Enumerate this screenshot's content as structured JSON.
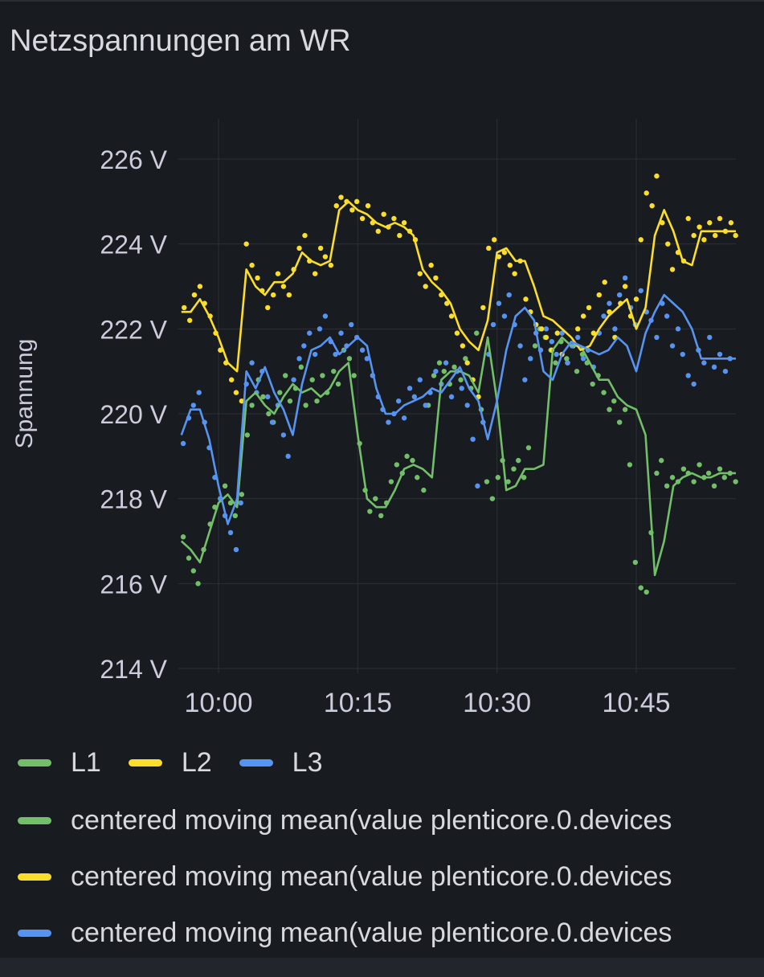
{
  "panel": {
    "title": "Netzspannungen am WR"
  },
  "colors": {
    "L1": "#73bf69",
    "L2": "#fade2a",
    "L3": "#5794f2",
    "grid": "#2c3035",
    "text": "#ccccdc",
    "background": "#181b1f"
  },
  "legend": {
    "row1": [
      {
        "label": "L1",
        "color": "#73bf69"
      },
      {
        "label": "L2",
        "color": "#fade2a"
      },
      {
        "label": "L3",
        "color": "#5794f2"
      }
    ],
    "rows": [
      {
        "label": "centered moving mean(value plenticore.0.devices",
        "color": "#73bf69"
      },
      {
        "label": "centered moving mean(value plenticore.0.devices",
        "color": "#fade2a"
      },
      {
        "label": "centered moving mean(value plenticore.0.devices",
        "color": "#5794f2"
      }
    ]
  },
  "chart_data": {
    "type": "scatter",
    "title": "Netzspannungen am WR",
    "ylabel": "Spannung",
    "xlabel": "",
    "ylim": [
      214,
      227
    ],
    "xlim": [
      56,
      116
    ],
    "y_ticks": [
      214,
      216,
      218,
      220,
      222,
      224,
      226
    ],
    "y_tick_labels": [
      "214 V",
      "216 V",
      "218 V",
      "220 V",
      "222 V",
      "224 V",
      "226 V"
    ],
    "x_ticks": [
      60,
      75,
      90,
      105
    ],
    "x_tick_labels": [
      "10:00",
      "10:15",
      "10:30",
      "10:45"
    ],
    "x_unit": "minutes after 09:00",
    "series": [
      {
        "name": "centered moving mean(value plenticore.0.devices",
        "color": "#73bf69",
        "x": [
          56,
          57,
          58,
          59,
          60,
          61,
          62,
          63,
          64,
          65,
          66,
          67,
          68,
          69,
          70,
          71,
          72,
          73,
          74,
          75,
          76,
          77,
          78,
          79,
          80,
          81,
          82,
          83,
          84,
          85,
          86,
          87,
          88,
          89,
          90,
          91,
          92,
          93,
          94,
          95,
          96,
          97,
          98,
          99,
          100,
          101,
          102,
          103,
          104,
          105,
          106,
          107,
          108,
          109,
          110,
          111,
          112,
          113,
          114,
          115,
          116
        ],
        "values": [
          217.0,
          216.8,
          216.5,
          217.2,
          217.9,
          218.1,
          217.8,
          220.3,
          220.5,
          220.2,
          220.0,
          220.4,
          220.7,
          220.5,
          220.6,
          220.4,
          220.6,
          221.0,
          221.2,
          219.5,
          218.0,
          217.8,
          217.8,
          218.2,
          218.7,
          218.8,
          218.7,
          218.5,
          220.8,
          221.0,
          221.0,
          220.9,
          220.5,
          221.8,
          220.3,
          218.2,
          218.3,
          218.7,
          218.7,
          218.8,
          221.5,
          221.8,
          221.6,
          221.6,
          221.2,
          220.8,
          220.8,
          220.4,
          220.2,
          220.1,
          219.5,
          216.2,
          217.0,
          218.3,
          218.5,
          218.6,
          218.5,
          218.5,
          218.6,
          218.6,
          218.6
        ]
      },
      {
        "name": "centered moving mean(value plenticore.0.devices",
        "color": "#fade2a",
        "x": [
          56,
          57,
          58,
          59,
          60,
          61,
          62,
          63,
          64,
          65,
          66,
          67,
          68,
          69,
          70,
          71,
          72,
          73,
          74,
          75,
          76,
          77,
          78,
          79,
          80,
          81,
          82,
          83,
          84,
          85,
          86,
          87,
          88,
          89,
          90,
          91,
          92,
          93,
          94,
          95,
          96,
          97,
          98,
          99,
          100,
          101,
          102,
          103,
          104,
          105,
          106,
          107,
          108,
          109,
          110,
          111,
          112,
          113,
          114,
          115,
          116
        ],
        "values": [
          222.4,
          222.4,
          222.7,
          222.3,
          221.8,
          221.2,
          221.0,
          223.4,
          223.0,
          222.8,
          223.1,
          223.1,
          223.3,
          223.8,
          223.6,
          223.5,
          223.6,
          224.8,
          225.0,
          224.8,
          224.7,
          224.5,
          224.4,
          224.5,
          224.4,
          224.2,
          223.4,
          223.1,
          222.9,
          222.6,
          222.0,
          221.7,
          221.5,
          222.2,
          223.8,
          223.9,
          223.6,
          223.6,
          223.0,
          222.3,
          222.2,
          222.0,
          221.8,
          221.5,
          221.6,
          222.0,
          222.3,
          222.5,
          222.7,
          222.0,
          222.5,
          224.2,
          224.8,
          224.3,
          223.6,
          223.5,
          224.3,
          224.3,
          224.3,
          224.3,
          224.3
        ]
      },
      {
        "name": "centered moving mean(value plenticore.0.devices",
        "color": "#5794f2",
        "x": [
          56,
          57,
          58,
          59,
          60,
          61,
          62,
          63,
          64,
          65,
          66,
          67,
          68,
          69,
          70,
          71,
          72,
          73,
          74,
          75,
          76,
          77,
          78,
          79,
          80,
          81,
          82,
          83,
          84,
          85,
          86,
          87,
          88,
          89,
          90,
          91,
          92,
          93,
          94,
          95,
          96,
          97,
          98,
          99,
          100,
          101,
          102,
          103,
          104,
          105,
          106,
          107,
          108,
          109,
          110,
          111,
          112,
          113,
          114,
          115,
          116
        ],
        "values": [
          219.5,
          220.1,
          220.1,
          219.4,
          218.3,
          217.4,
          218.0,
          221.0,
          220.6,
          221.1,
          220.5,
          220.1,
          219.5,
          220.7,
          221.5,
          221.6,
          221.8,
          221.4,
          221.6,
          221.8,
          221.6,
          220.6,
          220.0,
          220.0,
          220.2,
          220.3,
          220.4,
          220.6,
          220.5,
          220.8,
          221.1,
          220.6,
          220.3,
          219.4,
          220.3,
          221.5,
          222.3,
          222.5,
          222.2,
          221.0,
          220.8,
          221.4,
          221.7,
          221.6,
          221.5,
          221.4,
          221.5,
          221.8,
          221.6,
          221.0,
          221.9,
          222.4,
          222.8,
          222.6,
          222.4,
          222.0,
          221.3,
          221.3,
          221.3,
          221.3,
          221.3
        ]
      }
    ],
    "scatter_series": [
      {
        "name": "L1",
        "color": "#73bf69",
        "x": [
          56.2,
          56.8,
          57.3,
          57.8,
          58.4,
          59.1,
          59.6,
          60.2,
          60.7,
          61.3,
          61.8,
          62.5,
          63.1,
          63.6,
          64.3,
          64.8,
          65.4,
          65.9,
          66.6,
          67.2,
          67.7,
          68.3,
          68.9,
          69.4,
          70.1,
          70.6,
          71.2,
          71.7,
          72.4,
          72.9,
          73.5,
          74.1,
          74.6,
          75.2,
          75.8,
          76.3,
          76.9,
          77.5,
          78.1,
          78.6,
          79.2,
          79.8,
          80.3,
          80.9,
          81.4,
          82.1,
          82.6,
          83.2,
          83.8,
          84.3,
          84.9,
          85.4,
          86.1,
          86.6,
          87.2,
          87.8,
          88.3,
          88.9,
          89.5,
          90.1,
          90.6,
          91.2,
          91.8,
          92.3,
          92.9,
          93.4,
          94.1,
          94.6,
          95.2,
          95.8,
          96.3,
          96.9,
          97.5,
          98.1,
          98.6,
          99.2,
          99.7,
          100.3,
          100.9,
          101.5,
          102.1,
          102.6,
          103.2,
          103.8,
          104.3,
          104.9,
          105.5,
          106.1,
          106.6,
          107.2,
          107.7,
          108.3,
          108.9,
          109.5,
          110.1,
          110.6,
          111.2,
          111.8,
          112.3,
          112.8,
          113.4,
          114.0,
          114.5,
          115.1,
          115.7
        ],
        "values": [
          217.1,
          216.6,
          216.3,
          216.0,
          216.8,
          217.4,
          217.8,
          218.0,
          218.3,
          217.9,
          217.6,
          218.1,
          219.5,
          220.2,
          220.8,
          220.4,
          220.0,
          219.8,
          220.5,
          220.9,
          220.3,
          220.6,
          221.1,
          220.2,
          220.8,
          220.3,
          220.9,
          220.5,
          221.0,
          220.7,
          221.5,
          221.3,
          220.9,
          219.3,
          218.2,
          217.7,
          218.0,
          217.6,
          217.9,
          218.4,
          218.8,
          218.6,
          219.0,
          218.9,
          218.5,
          218.2,
          220.2,
          220.9,
          221.2,
          221.0,
          220.7,
          221.1,
          220.8,
          221.3,
          220.6,
          221.9,
          220.1,
          218.4,
          218.0,
          218.5,
          218.9,
          218.4,
          218.7,
          218.9,
          218.5,
          219.2,
          221.6,
          222.0,
          221.8,
          221.5,
          221.2,
          221.7,
          221.3,
          221.6,
          221.0,
          221.4,
          221.2,
          220.7,
          220.9,
          220.5,
          220.1,
          220.3,
          219.8,
          220.1,
          218.8,
          216.5,
          215.9,
          215.8,
          217.2,
          218.6,
          218.9,
          218.3,
          218.5,
          218.4,
          218.7,
          218.6,
          218.4,
          218.8,
          218.5,
          218.6,
          218.3,
          218.7,
          218.5,
          218.6,
          218.4
        ]
      },
      {
        "name": "L2",
        "color": "#fade2a",
        "x": [
          56.3,
          56.9,
          57.4,
          58.0,
          58.5,
          59.1,
          59.7,
          60.2,
          60.8,
          61.4,
          61.9,
          62.5,
          63.0,
          63.6,
          64.2,
          64.7,
          65.3,
          65.9,
          66.4,
          67.0,
          67.6,
          68.1,
          68.7,
          69.3,
          69.8,
          70.4,
          71.0,
          71.5,
          72.1,
          72.7,
          73.2,
          73.8,
          74.4,
          74.9,
          75.5,
          76.1,
          76.6,
          77.2,
          77.8,
          78.3,
          78.9,
          79.5,
          80.0,
          80.6,
          81.2,
          81.7,
          82.3,
          82.9,
          83.4,
          84.0,
          84.6,
          85.1,
          85.7,
          86.3,
          86.8,
          87.4,
          88.0,
          88.5,
          89.1,
          89.7,
          90.2,
          90.8,
          91.4,
          91.9,
          92.5,
          93.1,
          93.6,
          94.2,
          94.8,
          95.3,
          95.9,
          96.5,
          97.0,
          97.6,
          98.2,
          98.7,
          99.3,
          99.9,
          100.4,
          101.0,
          101.6,
          102.1,
          102.7,
          103.3,
          103.8,
          104.4,
          105.0,
          105.5,
          106.1,
          106.7,
          107.2,
          107.8,
          108.4,
          108.9,
          109.5,
          110.1,
          110.6,
          111.2,
          111.8,
          112.3,
          112.9,
          113.5,
          114.0,
          114.6,
          115.2,
          115.7
        ],
        "values": [
          222.5,
          222.2,
          222.8,
          223.0,
          222.6,
          222.3,
          221.9,
          221.5,
          221.2,
          220.8,
          220.5,
          220.3,
          224.0,
          223.5,
          223.2,
          222.9,
          222.5,
          222.8,
          223.3,
          223.0,
          222.8,
          223.4,
          223.9,
          224.2,
          223.6,
          223.3,
          223.9,
          223.7,
          223.5,
          224.9,
          225.1,
          225.0,
          224.8,
          225.0,
          224.6,
          224.9,
          224.5,
          224.3,
          224.7,
          224.4,
          224.6,
          224.2,
          224.5,
          224.3,
          224.1,
          223.3,
          223.0,
          223.5,
          223.2,
          222.8,
          222.6,
          222.3,
          221.9,
          221.6,
          221.2,
          220.8,
          220.4,
          222.5,
          223.9,
          224.1,
          223.7,
          223.8,
          223.5,
          223.3,
          223.6,
          222.7,
          222.4,
          222.1,
          222.0,
          221.8,
          221.5,
          221.9,
          221.4,
          221.2,
          221.6,
          222.0,
          222.3,
          222.5,
          221.9,
          222.8,
          223.1,
          222.4,
          221.8,
          222.6,
          223.0,
          222.3,
          222.7,
          224.1,
          225.2,
          224.9,
          225.6,
          224.5,
          224.0,
          223.4,
          223.8,
          223.6,
          224.6,
          224.2,
          224.4,
          224.1,
          224.5,
          224.2,
          224.6,
          224.3,
          224.5,
          224.2
        ]
      },
      {
        "name": "L3",
        "color": "#5794f2",
        "x": [
          56.2,
          56.8,
          57.3,
          57.9,
          58.5,
          59.0,
          59.6,
          60.2,
          60.7,
          61.3,
          61.9,
          62.4,
          63.0,
          63.6,
          64.1,
          64.7,
          65.3,
          65.8,
          66.4,
          67.0,
          67.5,
          68.1,
          68.7,
          69.2,
          69.8,
          70.4,
          70.9,
          71.5,
          72.1,
          72.6,
          73.2,
          73.8,
          74.3,
          74.9,
          75.5,
          76.0,
          76.6,
          77.2,
          77.7,
          78.3,
          78.9,
          79.4,
          80.0,
          80.6,
          81.1,
          81.7,
          82.3,
          82.8,
          83.4,
          84.0,
          84.5,
          85.1,
          85.7,
          86.2,
          86.8,
          87.4,
          87.9,
          88.5,
          89.1,
          89.6,
          90.2,
          90.8,
          91.3,
          91.9,
          92.5,
          93.0,
          93.6,
          94.2,
          94.7,
          95.3,
          95.9,
          96.4,
          97.0,
          97.6,
          98.1,
          98.7,
          99.3,
          99.8,
          100.4,
          101.0,
          101.5,
          102.1,
          102.7,
          103.2,
          103.8,
          104.4,
          104.9,
          105.5,
          106.1,
          106.6,
          107.2,
          107.8,
          108.3,
          108.9,
          109.5,
          110.0,
          110.6,
          111.2,
          111.7,
          112.3,
          112.9,
          113.4,
          114.0,
          114.6,
          115.1
        ],
        "values": [
          219.3,
          219.9,
          220.2,
          220.5,
          219.8,
          219.2,
          218.5,
          218.0,
          217.6,
          217.2,
          216.8,
          217.9,
          220.7,
          221.2,
          220.5,
          221.0,
          220.4,
          219.8,
          220.2,
          219.5,
          219.0,
          220.8,
          221.3,
          221.6,
          221.9,
          221.4,
          222.0,
          222.3,
          221.7,
          221.4,
          221.9,
          221.6,
          222.1,
          221.8,
          221.5,
          221.3,
          220.9,
          220.4,
          220.1,
          219.8,
          220.0,
          220.3,
          219.9,
          220.6,
          220.4,
          220.8,
          220.2,
          220.5,
          221.0,
          220.7,
          221.2,
          220.4,
          221.0,
          220.6,
          220.2,
          219.4,
          218.3,
          219.8,
          221.4,
          222.1,
          222.6,
          222.3,
          222.8,
          222.1,
          221.6,
          220.8,
          221.3,
          221.9,
          221.5,
          222.0,
          221.7,
          221.4,
          221.9,
          221.2,
          221.6,
          221.8,
          221.3,
          221.5,
          221.1,
          221.9,
          222.3,
          222.6,
          222.0,
          222.8,
          223.2,
          222.5,
          222.1,
          222.9,
          222.4,
          222.2,
          221.8,
          222.6,
          222.3,
          221.6,
          222.0,
          221.4,
          220.9,
          220.7,
          221.5,
          221.2,
          221.8,
          221.1,
          221.4,
          221.0,
          221.3
        ]
      }
    ]
  }
}
